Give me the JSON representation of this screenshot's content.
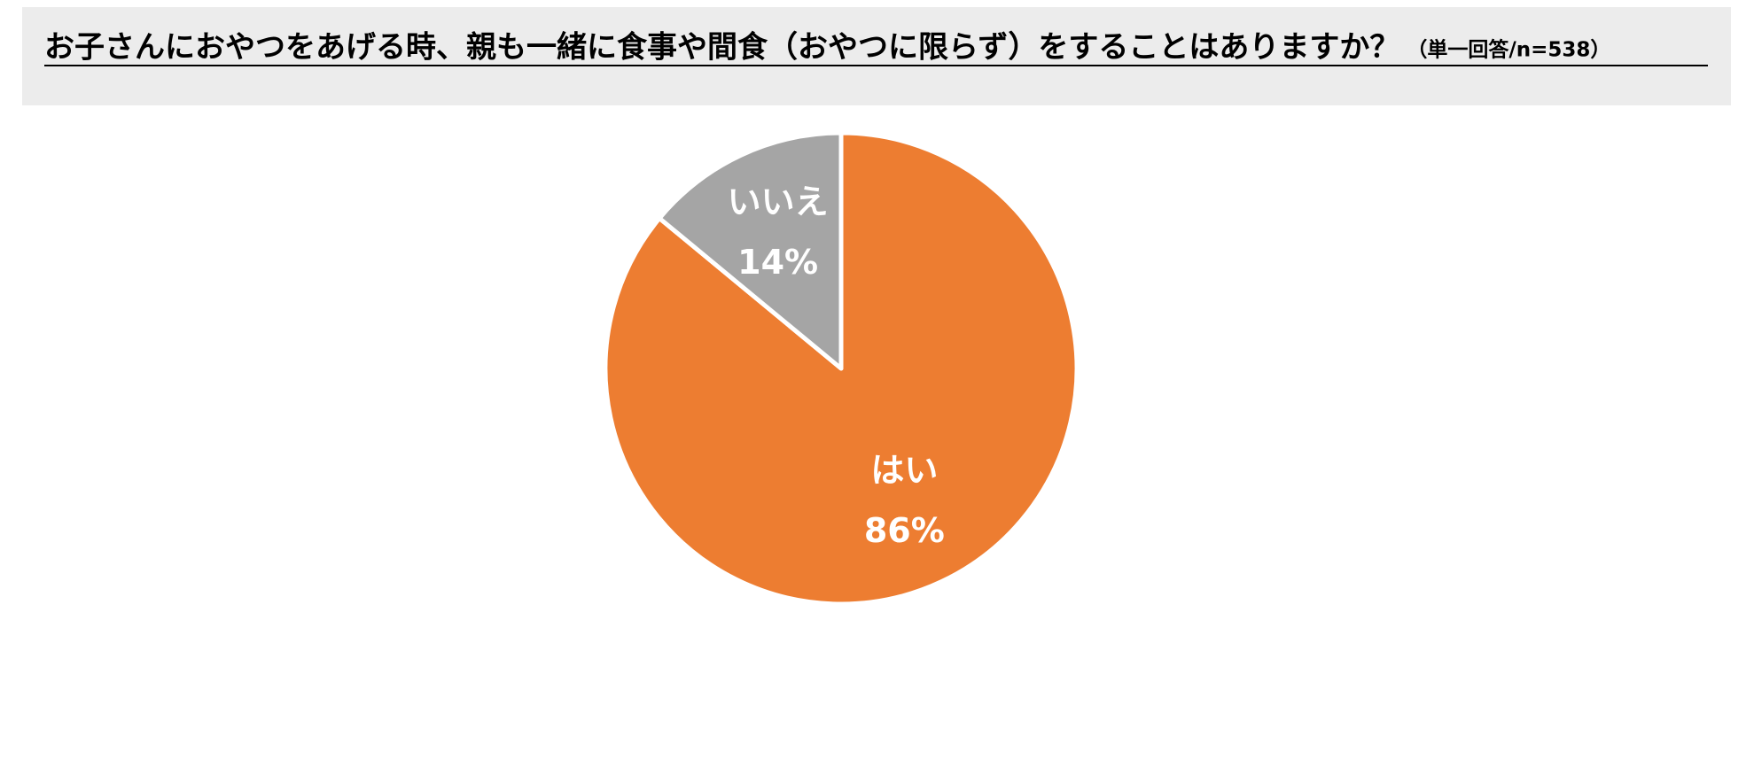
{
  "chart_data": {
    "type": "pie",
    "title": "お子さんにおやつをあげる時、親も一緒に食事や間食（おやつに限らず）をすることはありますか？",
    "subtitle": "（単一回答/n=538）",
    "categories": [
      "はい",
      "いいえ"
    ],
    "values": [
      86,
      14
    ],
    "value_labels": [
      "86%",
      "14%"
    ],
    "colors": [
      "#ed7d31",
      "#a5a5a5"
    ]
  }
}
